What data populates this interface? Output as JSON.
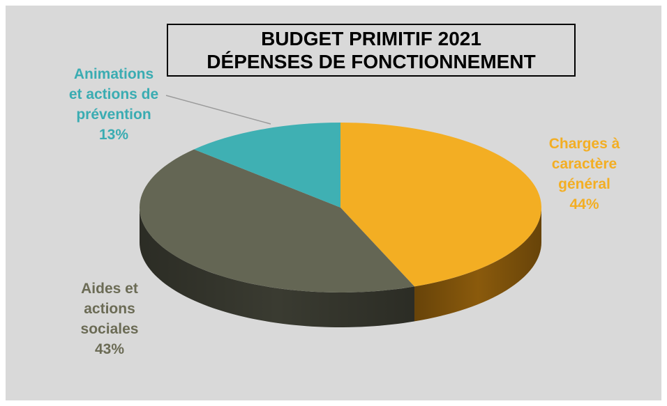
{
  "chart_data": {
    "type": "pie",
    "title": [
      "BUDGET PRIMITIF 2021",
      "DÉPENSES DE FONCTIONNEMENT"
    ],
    "slices": [
      {
        "label_lines": [
          "Charges à",
          "caractère",
          "général"
        ],
        "value": 44,
        "value_label": "44%",
        "color": "#f3ae23",
        "side_color": "#8a5a0c",
        "label_color": "#f3ae23"
      },
      {
        "label_lines": [
          "Aides et",
          "actions",
          "sociales"
        ],
        "value": 43,
        "value_label": "43%",
        "color": "#646654",
        "side_color": "#3a3b31",
        "label_color": "#6b6b55"
      },
      {
        "label_lines": [
          "Animations",
          "et actions de",
          "prévention"
        ],
        "value": 13,
        "value_label": "13%",
        "color": "#3fb0b3",
        "side_color": "#267274",
        "label_color": "#3aacb2"
      }
    ]
  },
  "colors": {
    "background": "#d9d9d9"
  }
}
